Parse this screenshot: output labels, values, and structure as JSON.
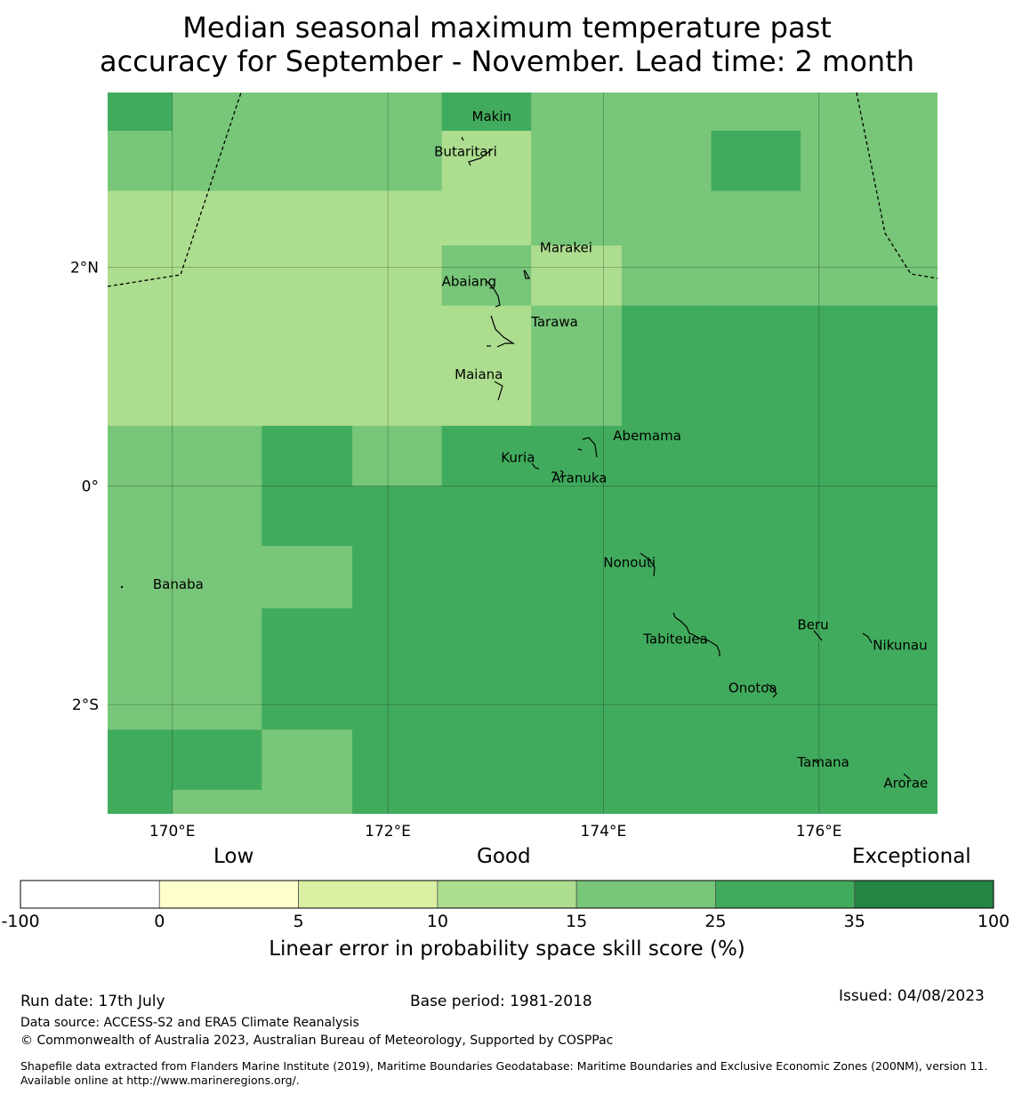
{
  "title_line1": "Median seasonal maximum temperature past",
  "title_line2": "accuracy for September - November. Lead time: 2 month",
  "map": {
    "lon_range": [
      169.4,
      177.1
    ],
    "lat_range": [
      -3.0,
      3.6
    ],
    "lon_ticks": [
      {
        "lon": 170,
        "label": "170°E"
      },
      {
        "lon": 172,
        "label": "172°E"
      },
      {
        "lon": 174,
        "label": "174°E"
      },
      {
        "lon": 176,
        "label": "176°E"
      }
    ],
    "lat_ticks": [
      {
        "lat": 2,
        "label": "2°N"
      },
      {
        "lat": 0,
        "label": "0°"
      },
      {
        "lat": -2,
        "label": "2°S"
      }
    ],
    "grid_lines": true,
    "cell_edges_lon": [
      169.4,
      170.0,
      170.83,
      171.67,
      172.5,
      173.33,
      174.17,
      175.0,
      175.83,
      176.0,
      177.1
    ],
    "cell_edges_lat": [
      3.6,
      3.25,
      2.7,
      2.2,
      1.65,
      0.55,
      0.0,
      -0.55,
      -1.12,
      -2.23,
      -2.78,
      -3.0
    ],
    "skill_classes": [
      [
        35,
        25,
        25,
        25,
        35,
        25,
        25,
        25,
        25,
        25
      ],
      [
        25,
        25,
        25,
        25,
        15,
        25,
        25,
        35,
        25,
        25
      ],
      [
        15,
        15,
        15,
        15,
        15,
        25,
        25,
        25,
        25,
        25
      ],
      [
        15,
        15,
        15,
        15,
        25,
        15,
        25,
        25,
        25,
        25
      ],
      [
        15,
        15,
        15,
        15,
        15,
        25,
        35,
        35,
        35,
        35
      ],
      [
        25,
        25,
        35,
        25,
        35,
        35,
        35,
        35,
        35,
        35
      ],
      [
        25,
        25,
        35,
        35,
        35,
        35,
        35,
        35,
        35,
        35
      ],
      [
        25,
        25,
        25,
        35,
        35,
        35,
        35,
        35,
        35,
        35
      ],
      [
        25,
        25,
        35,
        35,
        35,
        35,
        35,
        35,
        35,
        35
      ],
      [
        35,
        35,
        25,
        35,
        35,
        35,
        35,
        35,
        35,
        35
      ],
      [
        35,
        25,
        25,
        35,
        35,
        35,
        35,
        35,
        35,
        35
      ]
    ],
    "place_labels": [
      {
        "name": "Makin",
        "lon": 172.78,
        "lat": 3.34
      },
      {
        "name": "Butaritari",
        "lon": 172.43,
        "lat": 3.02
      },
      {
        "name": "Marakei",
        "lon": 173.41,
        "lat": 2.14
      },
      {
        "name": "Abaiang",
        "lon": 172.5,
        "lat": 1.83
      },
      {
        "name": "Tarawa",
        "lon": 173.33,
        "lat": 1.46
      },
      {
        "name": "Maiana",
        "lon": 172.62,
        "lat": 0.98
      },
      {
        "name": "Abemama",
        "lon": 174.09,
        "lat": 0.42
      },
      {
        "name": "Kuria",
        "lon": 173.05,
        "lat": 0.22
      },
      {
        "name": "Aranuka",
        "lon": 173.52,
        "lat": 0.03
      },
      {
        "name": "Nonouti",
        "lon": 174.0,
        "lat": -0.74
      },
      {
        "name": "Banaba",
        "lon": 169.82,
        "lat": -0.94
      },
      {
        "name": "Beru",
        "lon": 175.8,
        "lat": -1.31
      },
      {
        "name": "Tabiteuea",
        "lon": 174.37,
        "lat": -1.44
      },
      {
        "name": "Nikunau",
        "lon": 176.5,
        "lat": -1.5
      },
      {
        "name": "Onotoa",
        "lon": 175.16,
        "lat": -1.89
      },
      {
        "name": "Tamana",
        "lon": 175.8,
        "lat": -2.57
      },
      {
        "name": "Arorae",
        "lon": 176.6,
        "lat": -2.76
      }
    ]
  },
  "legend": {
    "words": [
      "Low",
      "Good",
      "Exceptional"
    ],
    "bins": [
      {
        "from": -100,
        "to": 0,
        "color": "#ffffff"
      },
      {
        "from": 0,
        "to": 5,
        "color": "#ffffcc"
      },
      {
        "from": 5,
        "to": 10,
        "color": "#d9f0a3"
      },
      {
        "from": 10,
        "to": 15,
        "color": "#addd8e"
      },
      {
        "from": 15,
        "to": 25,
        "color": "#78c679"
      },
      {
        "from": 25,
        "to": 35,
        "color": "#41ab5d"
      },
      {
        "from": 35,
        "to": 100,
        "color": "#238443"
      }
    ],
    "tick_labels": [
      "-100",
      "0",
      "5",
      "10",
      "15",
      "25",
      "35",
      "100"
    ],
    "label": "Linear error in probability space skill score (%)"
  },
  "footer": {
    "run_date": "Run date: 17th July",
    "base_period": "Base period: 1981-2018",
    "issued": "Issued: 04/08/2023",
    "data_source": "Data source: ACCESS-S2 and ERA5 Climate Reanalysis",
    "copyright": "© Commonwealth of Australia 2023, Australian Bureau of Meteorology, Supported by COSPPac",
    "shapefile": "Shapefile data extracted from Flanders Marine Institute (2019), Maritime Boundaries Geodatabase: Maritime Boundaries and Exclusive Economic Zones (200NM), version 11. Available online at http://www.marineregions.org/."
  }
}
